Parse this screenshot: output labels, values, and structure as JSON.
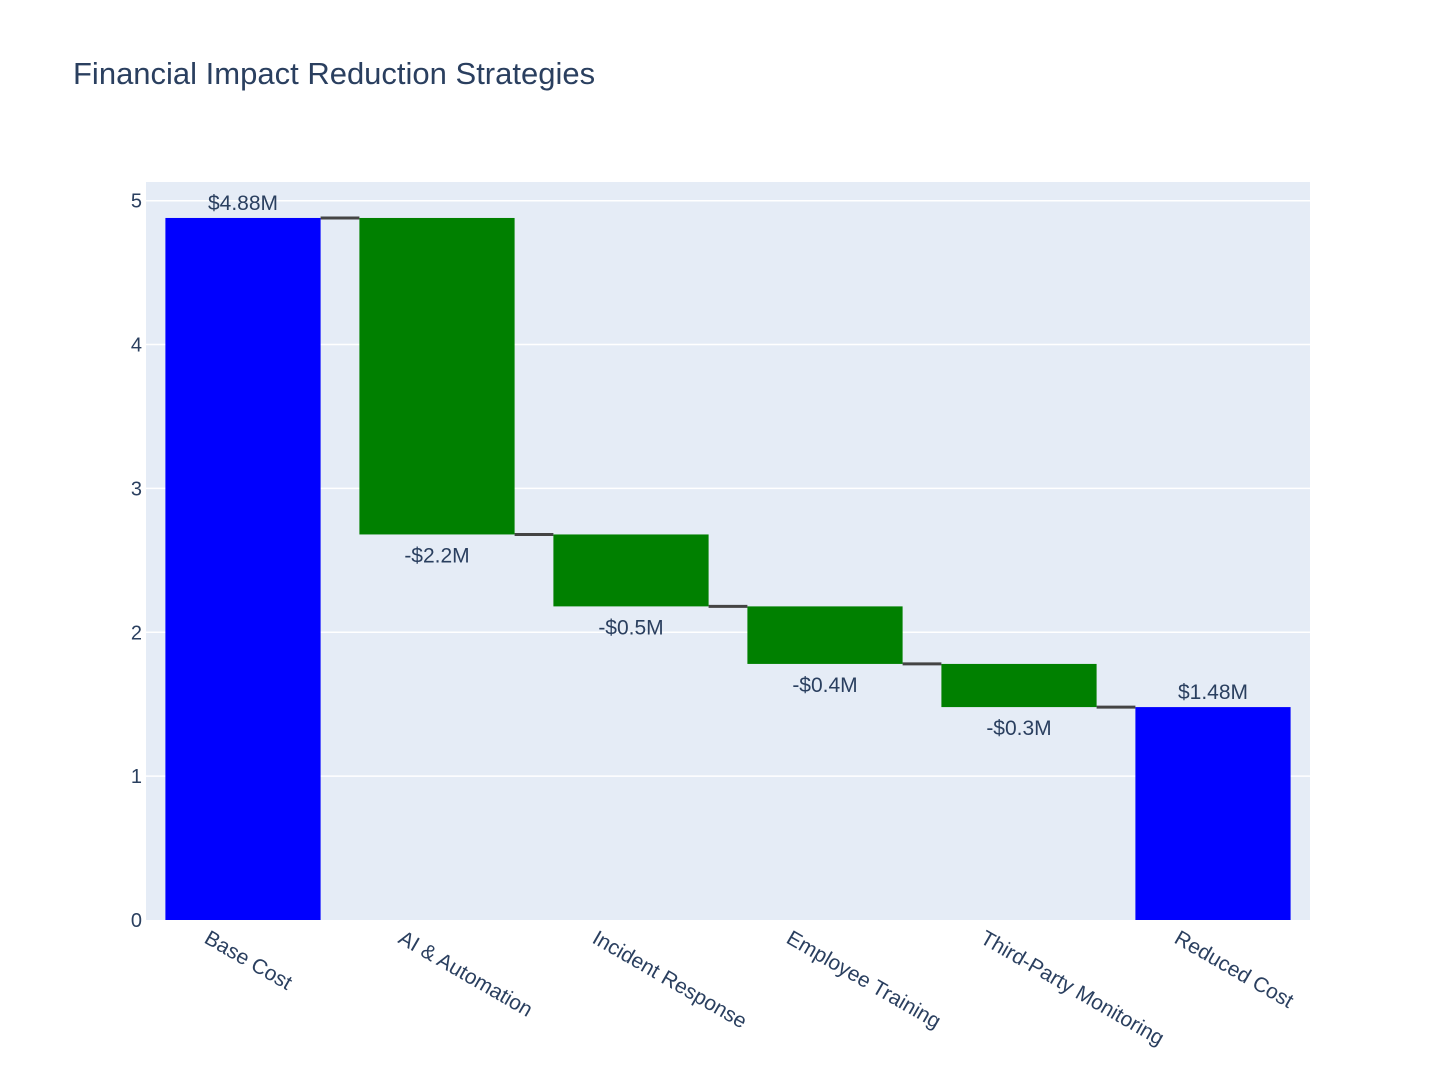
{
  "chart_data": {
    "type": "waterfall",
    "title": "Financial Impact Reduction Strategies",
    "xlabel": "",
    "ylabel": "",
    "ylim": [
      0,
      5.13
    ],
    "y_ticks": [
      0,
      1,
      2,
      3,
      4,
      5
    ],
    "grid": true,
    "categories": [
      "Base Cost",
      "AI & Automation",
      "Incident Response",
      "Employee Training",
      "Third-Party Monitoring",
      "Reduced Cost"
    ],
    "measures": [
      "absolute",
      "relative",
      "relative",
      "relative",
      "relative",
      "total"
    ],
    "values": [
      4.88,
      -2.2,
      -0.5,
      -0.4,
      -0.3,
      1.48
    ],
    "bars": [
      {
        "category": "Base Cost",
        "measure": "absolute",
        "start": 0,
        "end": 4.88,
        "label": "$4.88M"
      },
      {
        "category": "AI & Automation",
        "measure": "relative",
        "start": 4.88,
        "end": 2.68,
        "label": "-$2.2M"
      },
      {
        "category": "Incident Response",
        "measure": "relative",
        "start": 2.68,
        "end": 2.18,
        "label": "-$0.5M"
      },
      {
        "category": "Employee Training",
        "measure": "relative",
        "start": 2.18,
        "end": 1.78,
        "label": "-$0.4M"
      },
      {
        "category": "Third-Party Monitoring",
        "measure": "relative",
        "start": 1.78,
        "end": 1.48,
        "label": "-$0.3M"
      },
      {
        "category": "Reduced Cost",
        "measure": "total",
        "start": 0,
        "end": 1.48,
        "label": "$1.48M"
      }
    ],
    "colors": {
      "total": "#0000ff",
      "decrease": "#008000",
      "connector": "#444444",
      "plot_background": "#e5ecf6",
      "grid": "#ffffff",
      "text": "#2a3f5f"
    }
  }
}
